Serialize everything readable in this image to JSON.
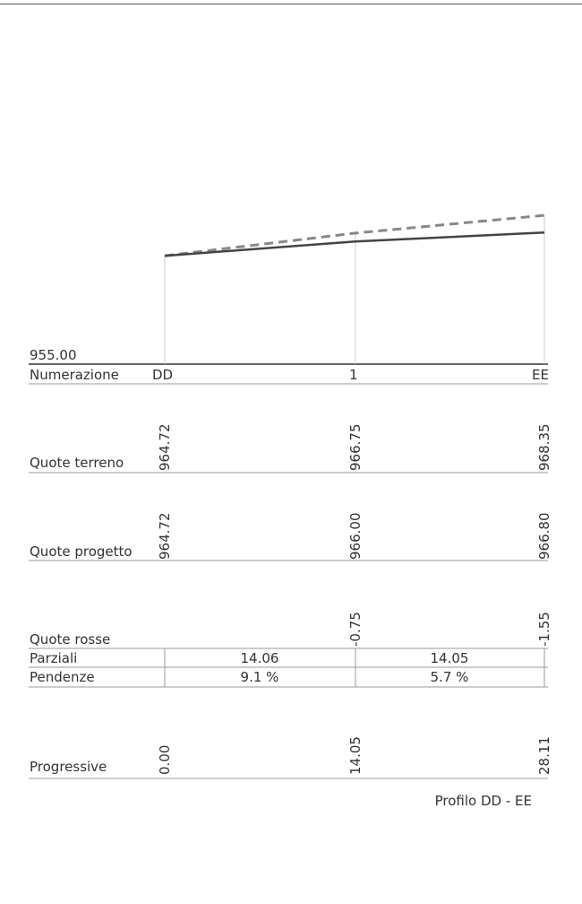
{
  "chart_data": {
    "type": "line",
    "title": "Profilo DD - EE",
    "datum": "955.00",
    "stations": [
      "DD",
      "1",
      "EE"
    ],
    "series": [
      {
        "key": "terreno",
        "values": [
          964.72,
          966.75,
          968.35
        ],
        "color": "#888888",
        "dashed": true
      },
      {
        "key": "progetto",
        "values": [
          964.72,
          966.0,
          966.8
        ],
        "color": "#444444",
        "dashed": false
      }
    ],
    "x": [
      0.0,
      14.05,
      28.11
    ],
    "rows": {
      "numerazione": {
        "label": "Numerazione",
        "values": [
          "DD",
          "1",
          "EE"
        ]
      },
      "quote_terreno": {
        "label": "Quote terreno",
        "values": [
          "964.72",
          "966.75",
          "968.35"
        ]
      },
      "quote_progetto": {
        "label": "Quote progetto",
        "values": [
          "964.72",
          "966.00",
          "966.80"
        ]
      },
      "quote_rosse": {
        "label": "Quote rosse",
        "values": [
          "",
          "-0.75",
          "-1.55"
        ]
      },
      "parziali": {
        "label": "Parziali",
        "values": [
          "14.06",
          "14.05"
        ]
      },
      "pendenze": {
        "label": "Pendenze",
        "values": [
          "9.1 %",
          "5.7 %"
        ]
      },
      "progressive": {
        "label": "Progressive",
        "values": [
          "0.00",
          "14.05",
          "28.11"
        ]
      }
    }
  }
}
